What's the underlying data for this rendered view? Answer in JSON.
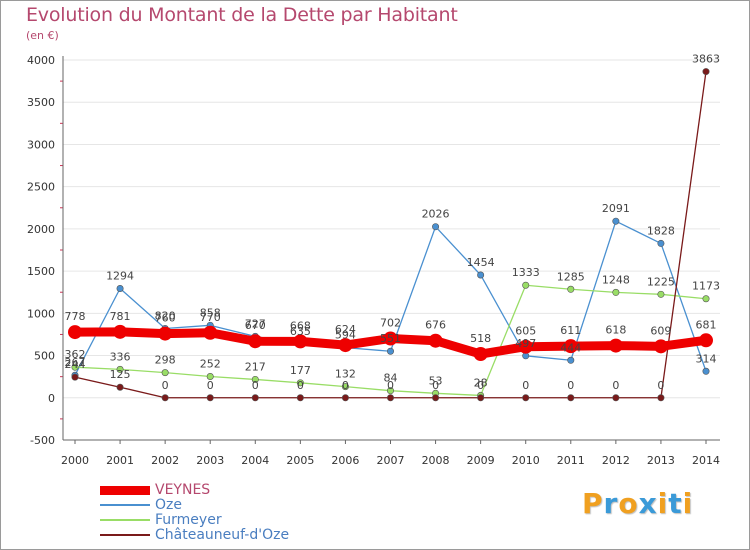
{
  "chart_data": {
    "type": "line",
    "title": "Evolution du Montant de la Dette par Habitant",
    "unit": "(en €)",
    "xlabel": "",
    "ylabel": "",
    "ylim": [
      -500,
      4000
    ],
    "yticks": [
      "-500",
      "0",
      "500",
      "1000",
      "1500",
      "2000",
      "2500",
      "3000",
      "3500",
      "4000"
    ],
    "ytick_values": [
      -500,
      0,
      500,
      1000,
      1500,
      2000,
      2500,
      3000,
      3500,
      4000
    ],
    "categories": [
      "2000",
      "2001",
      "2002",
      "2003",
      "2004",
      "2005",
      "2006",
      "2007",
      "2008",
      "2009",
      "2010",
      "2011",
      "2012",
      "2013",
      "2014"
    ],
    "legend_position": "bottom-left",
    "series": [
      {
        "name": "VEYNES",
        "color": "#ee0000",
        "values": [
          778,
          781,
          760,
          770,
          670,
          668,
          624,
          702,
          676,
          518,
          605,
          611,
          618,
          609,
          681
        ],
        "labels": [
          "778",
          "781",
          "760",
          "770",
          "670",
          "668",
          "624",
          "702",
          "676",
          "518",
          "605",
          "611",
          "618",
          "609",
          "681"
        ]
      },
      {
        "name": "Oze",
        "color": "#4a90d0",
        "values": [
          267,
          1294,
          820,
          858,
          727,
          635,
          594,
          551,
          null,
          1454,
          497,
          444,
          2091,
          1828,
          314
        ],
        "labels": [
          "267",
          "1294",
          "820",
          "858",
          "727",
          "635",
          "594",
          "551",
          "2026",
          "1454",
          "497",
          "444",
          "2091",
          "1828",
          "314"
        ],
        "extra": {
          "index": 8,
          "value": 2026
        }
      },
      {
        "name": "Furmeyer",
        "color": "#99dd66",
        "values": [
          362,
          336,
          298,
          252,
          217,
          177,
          132,
          84,
          53,
          28,
          1333,
          1285,
          1248,
          1225,
          1173
        ],
        "labels": [
          "362",
          "336",
          "298",
          "252",
          "217",
          "177",
          "132",
          "84",
          "53",
          "28",
          "1333",
          "1285",
          "1248",
          "1225",
          "1173"
        ]
      },
      {
        "name": "Châteauneuf-d'Oze",
        "color": "#7a1a1a",
        "values": [
          244,
          125,
          0,
          0,
          0,
          0,
          0,
          0,
          0,
          0,
          0,
          0,
          0,
          0,
          3863
        ],
        "labels": [
          "244",
          "125",
          "0",
          "0",
          "0",
          "0",
          "0",
          "0",
          "0",
          "0",
          "0",
          "0",
          "0",
          "0",
          "3863"
        ]
      }
    ]
  },
  "brand": {
    "text": "Proxiti",
    "letters": [
      {
        "ch": "P",
        "color": "#f0a020"
      },
      {
        "ch": "r",
        "color": "#3a9ad8"
      },
      {
        "ch": "o",
        "color": "#f0a020"
      },
      {
        "ch": "x",
        "color": "#3a9ad8"
      },
      {
        "ch": "i",
        "color": "#f0a020"
      },
      {
        "ch": "t",
        "color": "#3a9ad8"
      },
      {
        "ch": "i",
        "color": "#f0a020"
      }
    ]
  }
}
